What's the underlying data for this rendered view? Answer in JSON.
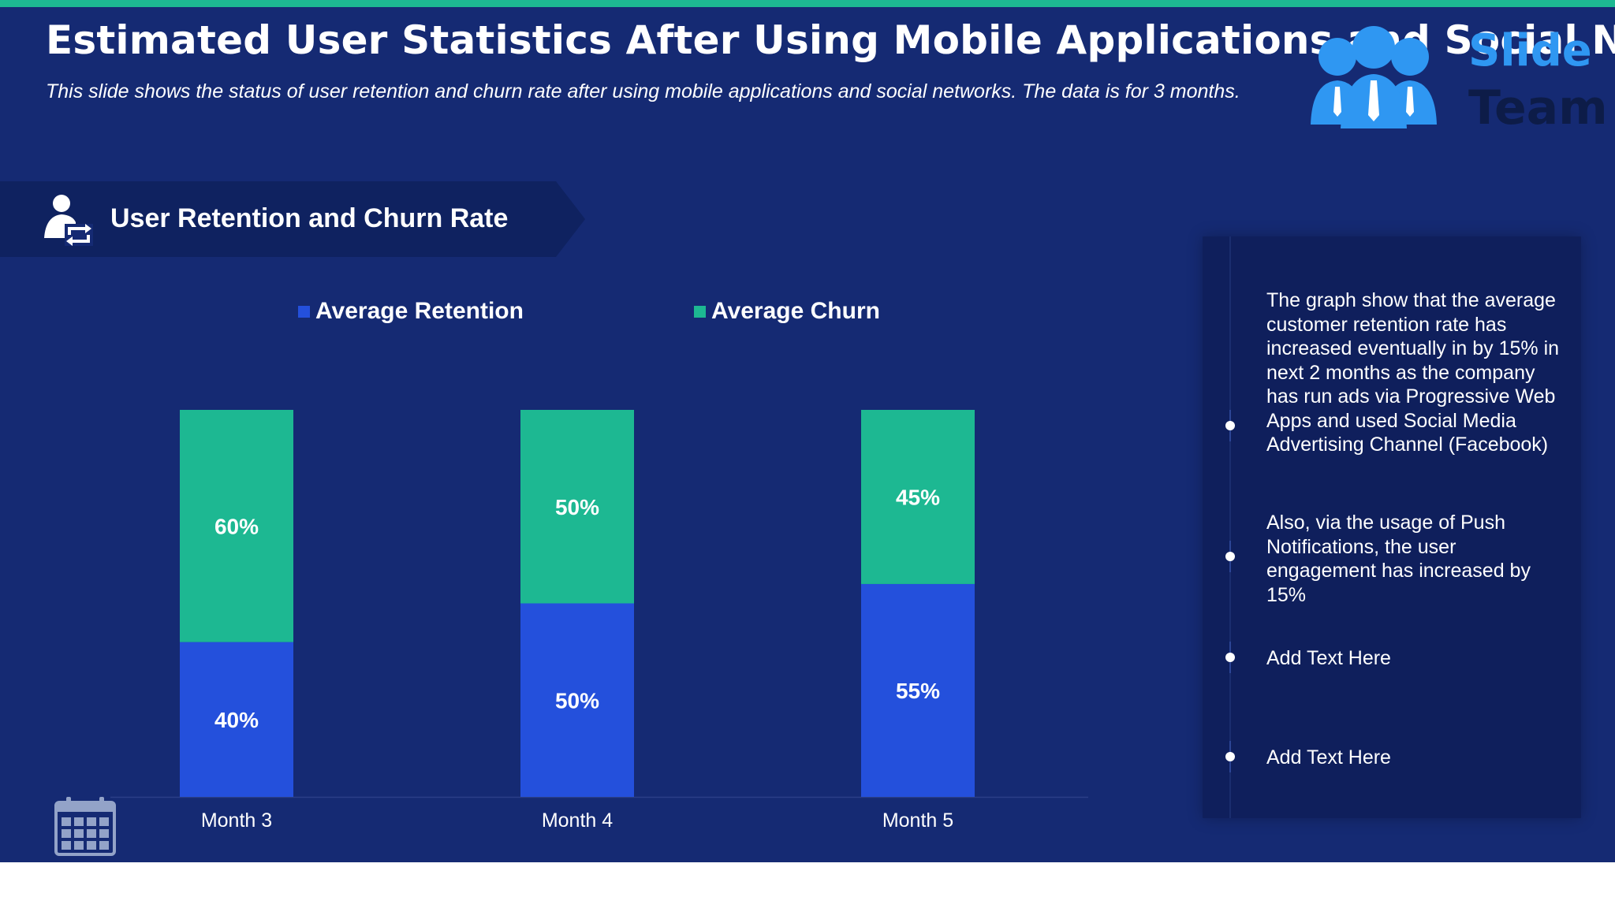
{
  "title": "Estimated User Statistics After Using Mobile Applications and Social Networks",
  "subtitle": "This slide shows the status of user retention and churn rate after using mobile applications and social networks. The data is for 3 months.",
  "logo": {
    "word1": "Slide",
    "word2": "Team"
  },
  "section_header": {
    "title": "User Retention and Churn Rate",
    "icon": "user-refresh-icon"
  },
  "colors": {
    "background": "#152a73",
    "accent": "#1db892",
    "retention": "#2450dc",
    "churn": "#1db892",
    "panel": "#0f1f5c"
  },
  "chart_data": {
    "type": "bar",
    "stacked": true,
    "categories": [
      "Month 3",
      "Month 4",
      "Month 5"
    ],
    "series": [
      {
        "name": "Average Retention",
        "values": [
          40,
          50,
          55
        ],
        "labels": [
          "40%",
          "50%",
          "55%"
        ],
        "color": "#2450dc"
      },
      {
        "name": "Average Churn",
        "values": [
          60,
          50,
          45
        ],
        "labels": [
          "60%",
          "50%",
          "45%"
        ],
        "color": "#1db892"
      }
    ],
    "ylim": [
      0,
      100
    ],
    "legend": "top",
    "grid": false
  },
  "notes": [
    {
      "text": "The graph show that the average customer retention rate has increased eventually in by 15% in next 2 months as the company has run ads via Progressive Web Apps and used Social Media Advertising Channel (Facebook)"
    },
    {
      "text": "Also, via the usage of Push Notifications, the user engagement has increased by 15%"
    },
    {
      "text": "Add Text Here"
    },
    {
      "text": "Add Text Here"
    }
  ]
}
